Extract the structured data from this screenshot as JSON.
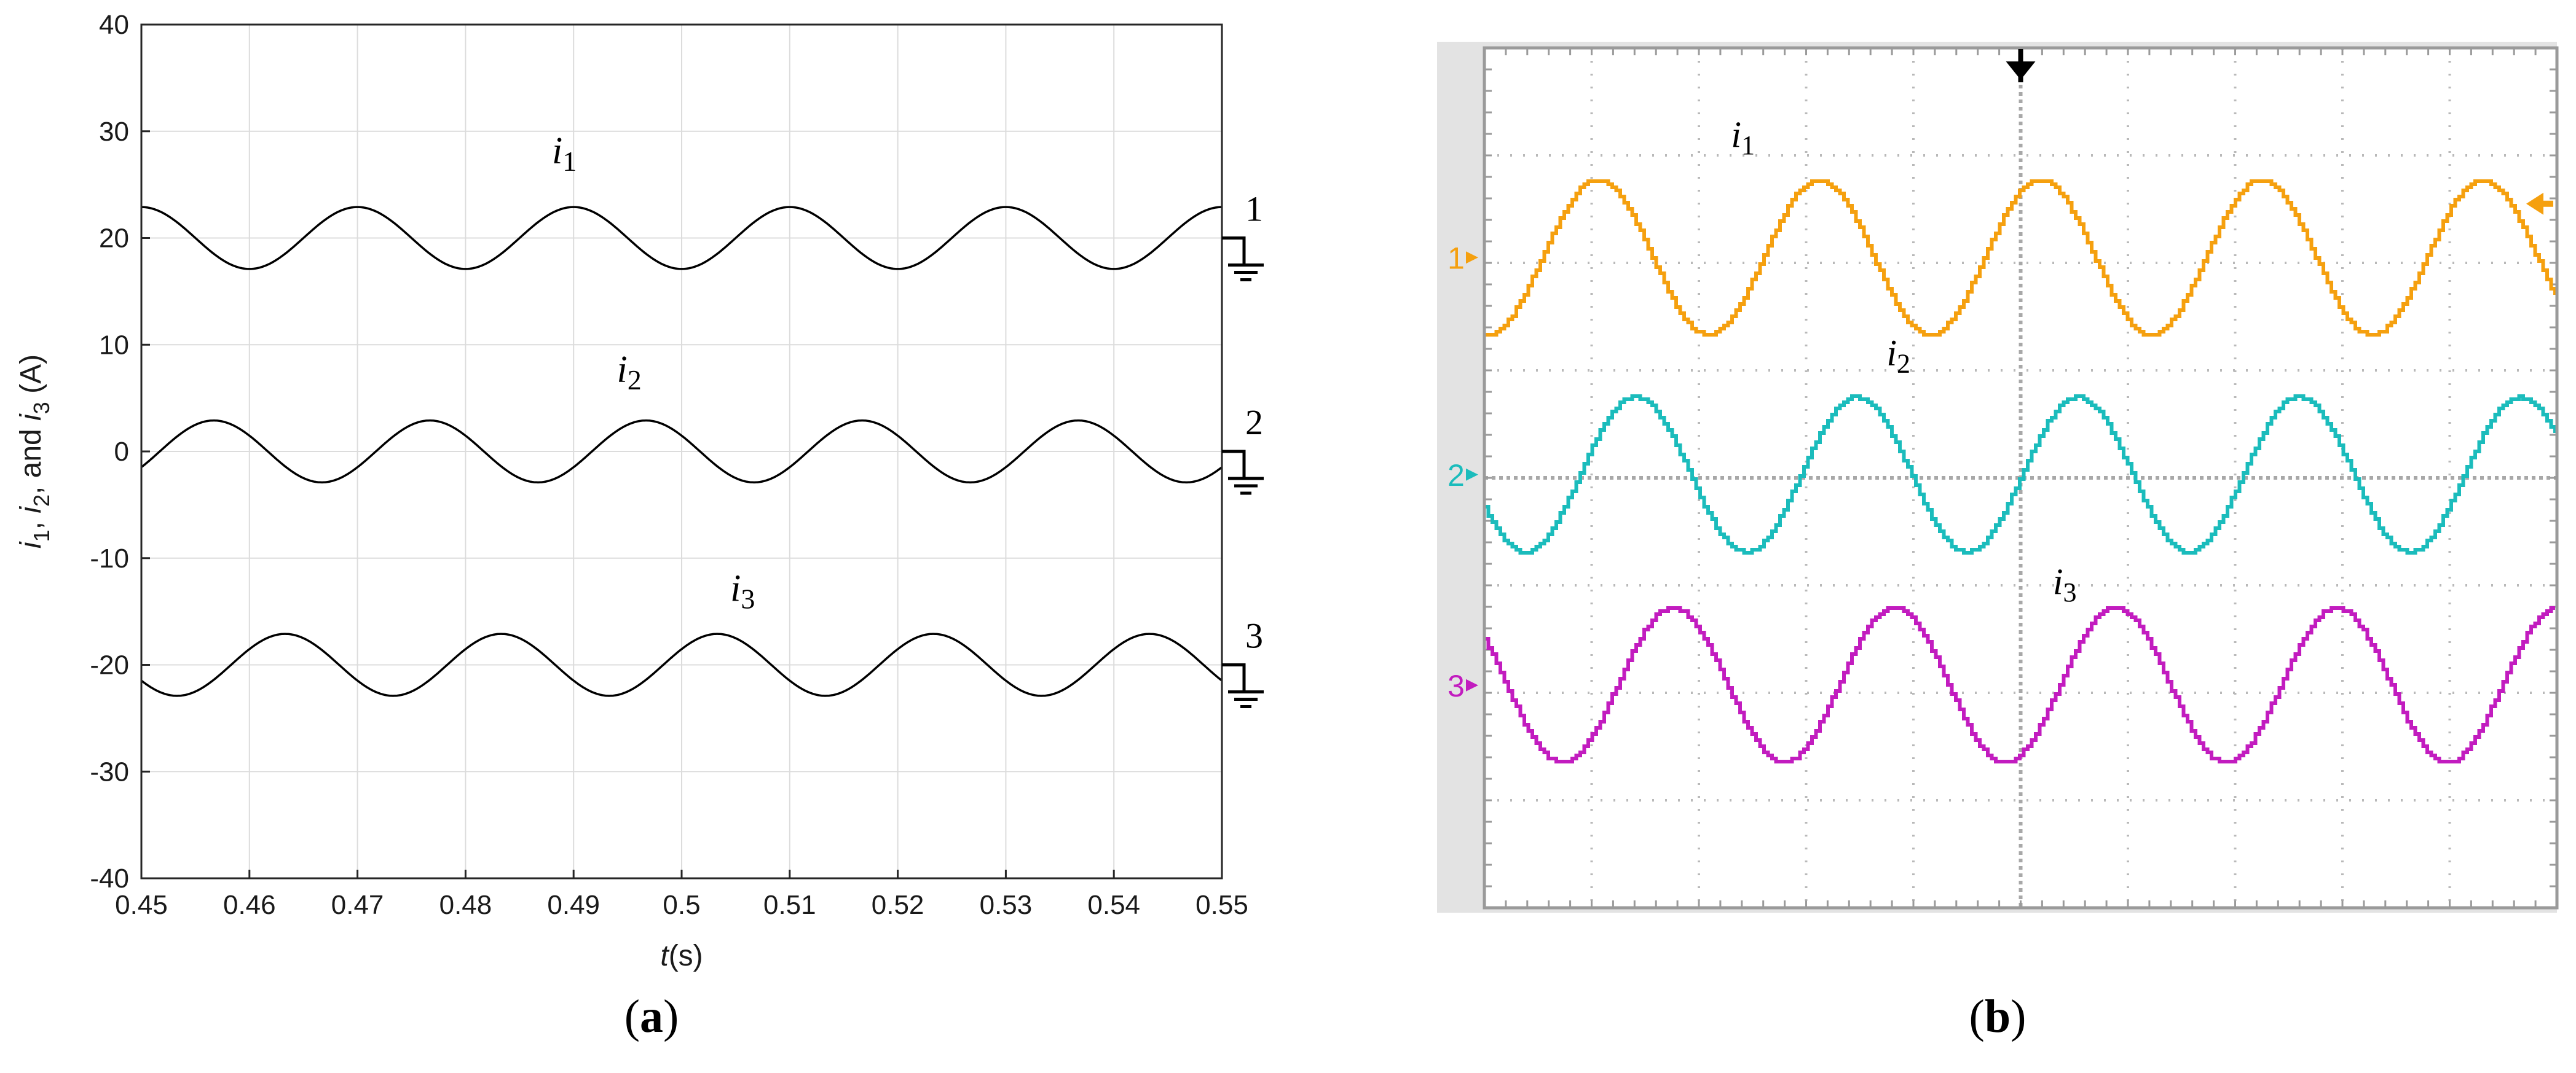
{
  "chart_data": [
    {
      "type": "line",
      "panel": "(a)",
      "title": "",
      "xlabel_italic": "t",
      "xlabel_rest": "(s)",
      "ylabel_parts": [
        "i",
        "1",
        ", ",
        "i",
        "2",
        ", and ",
        "i",
        "3",
        " (A)"
      ],
      "xlim": [
        0.45,
        0.55
      ],
      "ylim": [
        -40,
        40
      ],
      "xticks": [
        0.45,
        0.46,
        0.47,
        0.48,
        0.49,
        0.5,
        0.51,
        0.52,
        0.53,
        0.54,
        0.55
      ],
      "xtick_labels": [
        "0.45",
        "0.46",
        "0.47",
        "0.48",
        "0.49",
        "0.5",
        "0.51",
        "0.52",
        "0.53",
        "0.54",
        "0.55"
      ],
      "yticks": [
        -40,
        -30,
        -20,
        -10,
        0,
        10,
        20,
        30,
        40
      ],
      "ytick_labels": [
        "-40",
        "-30",
        "-20",
        "-10",
        "0",
        "10",
        "20",
        "30",
        "40"
      ],
      "grid": true,
      "color": "#000000",
      "series": [
        {
          "name": "i1",
          "label_base": "i",
          "label_sub": "1",
          "label_at": [
            0.488,
            27
          ],
          "marker": "1",
          "offset": 20,
          "amplitude": 2.9,
          "frequency_hz": 50,
          "peak_time": 0.47
        },
        {
          "name": "i2",
          "label_base": "i",
          "label_sub": "2",
          "label_at": [
            0.494,
            6.5
          ],
          "marker": "2",
          "offset": 0,
          "amplitude": 2.9,
          "frequency_hz": 50,
          "peak_time": 0.4567
        },
        {
          "name": "i3",
          "label_base": "i",
          "label_sub": "3",
          "label_at": [
            0.5045,
            -14
          ],
          "marker": "3",
          "offset": -20,
          "amplitude": 2.9,
          "frequency_hz": 50,
          "peak_time": 0.4633
        }
      ]
    },
    {
      "type": "line",
      "panel": "(b)",
      "title": "",
      "style": "oscilloscope",
      "grid_divisions": [
        10,
        8
      ],
      "channels": [
        {
          "name": "i1",
          "label_base": "i",
          "label_sub": "1",
          "marker": "1",
          "color": "#f5a00f",
          "center_div": 1.95,
          "amplitude_div": 0.72,
          "cycles": 4.85,
          "peak_div": 1.05,
          "label_at_div": [
            2.3,
            0.92
          ]
        },
        {
          "name": "i2",
          "label_base": "i",
          "label_sub": "2",
          "marker": "2",
          "color": "#1bbcbc",
          "center_div": 3.97,
          "amplitude_div": 0.72,
          "cycles": 4.85,
          "peak_div": 1.4,
          "label_at_div": [
            3.75,
            2.95
          ]
        },
        {
          "name": "i3",
          "label_base": "i",
          "label_sub": "3",
          "marker": "3",
          "color": "#c21cbf",
          "center_div": 5.93,
          "amplitude_div": 0.72,
          "cycles": 4.85,
          "peak_div": 1.75,
          "label_at_div": [
            5.3,
            5.08
          ]
        }
      ],
      "trigger_color": "#000000"
    }
  ],
  "captions": [
    "a",
    "b"
  ]
}
